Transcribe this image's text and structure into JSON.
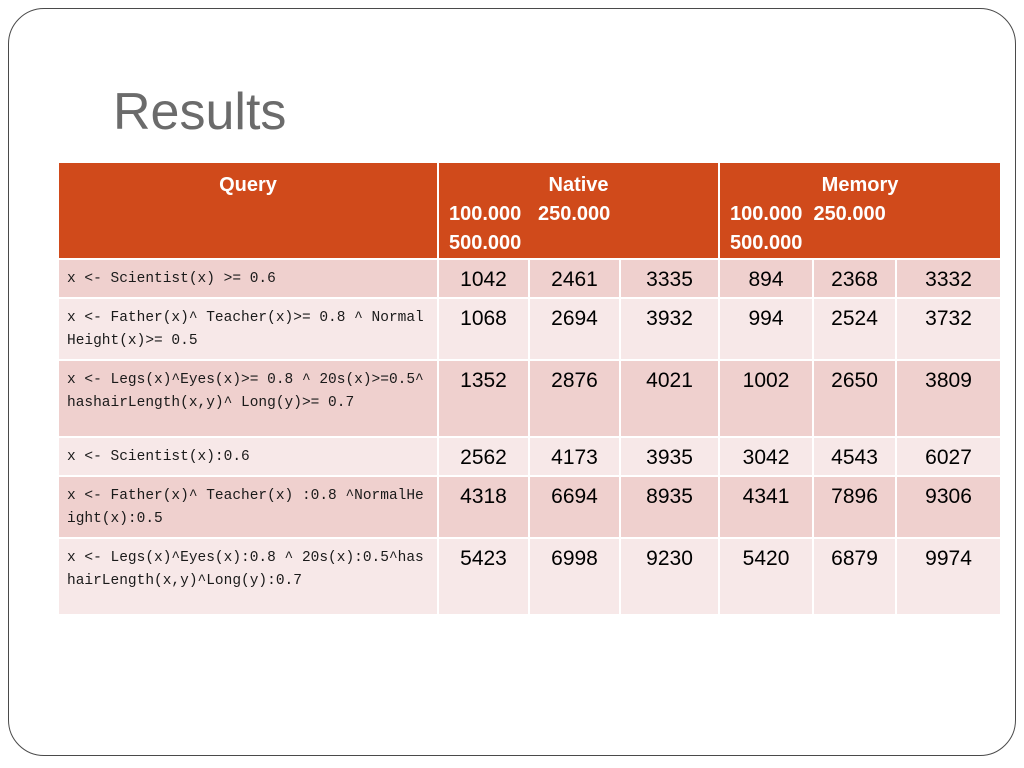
{
  "title": "Results",
  "table": {
    "headers": {
      "query": "Query",
      "native": {
        "name": "Native",
        "sizes": "100.000   250.000\n500.000"
      },
      "memory": {
        "name": "Memory",
        "sizes": "100.000  250.000\n500.000"
      }
    },
    "rows": [
      {
        "query": "x <- Scientist(x) >= 0.6",
        "values": [
          "1042",
          "2461",
          "3335",
          "894",
          "2368",
          "3332"
        ]
      },
      {
        "query": "x <- Father(x)^ Teacher(x)>= 0.8 ^ NormalHeight(x)>= 0.5",
        "values": [
          "1068",
          "2694",
          "3932",
          "994",
          "2524",
          "3732"
        ]
      },
      {
        "query": "x <- Legs(x)^Eyes(x)>= 0.8 ^ 20s(x)>=0.5^hashairLength(x,y)^ Long(y)>= 0.7",
        "values": [
          "1352",
          "2876",
          "4021",
          "1002",
          "2650",
          "3809"
        ]
      },
      {
        "query": "x <- Scientist(x):0.6",
        "values": [
          "2562",
          "4173",
          "3935",
          "3042",
          "4543",
          "6027"
        ]
      },
      {
        "query": "x <- Father(x)^ Teacher(x) :0.8 ^NormalHeight(x):0.5",
        "values": [
          "4318",
          "6694",
          "8935",
          "4341",
          "7896",
          "9306"
        ]
      },
      {
        "query": "x <- Legs(x)^Eyes(x):0.8 ^ 20s(x):0.5^hashairLength(x,y)^Long(y):0.7",
        "values": [
          "5423",
          "6998",
          "9230",
          "5420",
          "6879",
          "9974"
        ]
      }
    ]
  },
  "colors": {
    "header_bg": "#d04a1b",
    "row_odd_bg": "#efd0ce",
    "row_even_bg": "#f7e8e8",
    "title": "#6b6b6b"
  }
}
